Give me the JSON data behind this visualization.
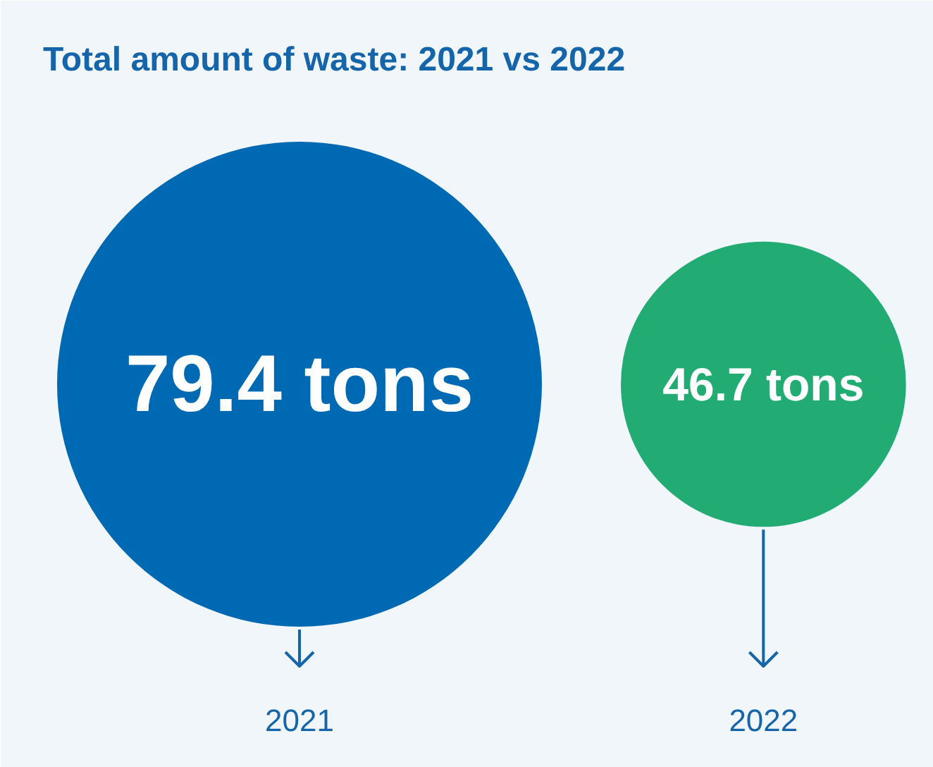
{
  "chart_data": {
    "type": "other",
    "title": "Total amount of waste: 2021 vs 2022",
    "categories": [
      "2021",
      "2022"
    ],
    "values": [
      79.4,
      46.7
    ],
    "value_labels": [
      "79.4 tons",
      "46.7 tons"
    ],
    "colors": [
      "#0069b4",
      "#22ac74"
    ]
  }
}
